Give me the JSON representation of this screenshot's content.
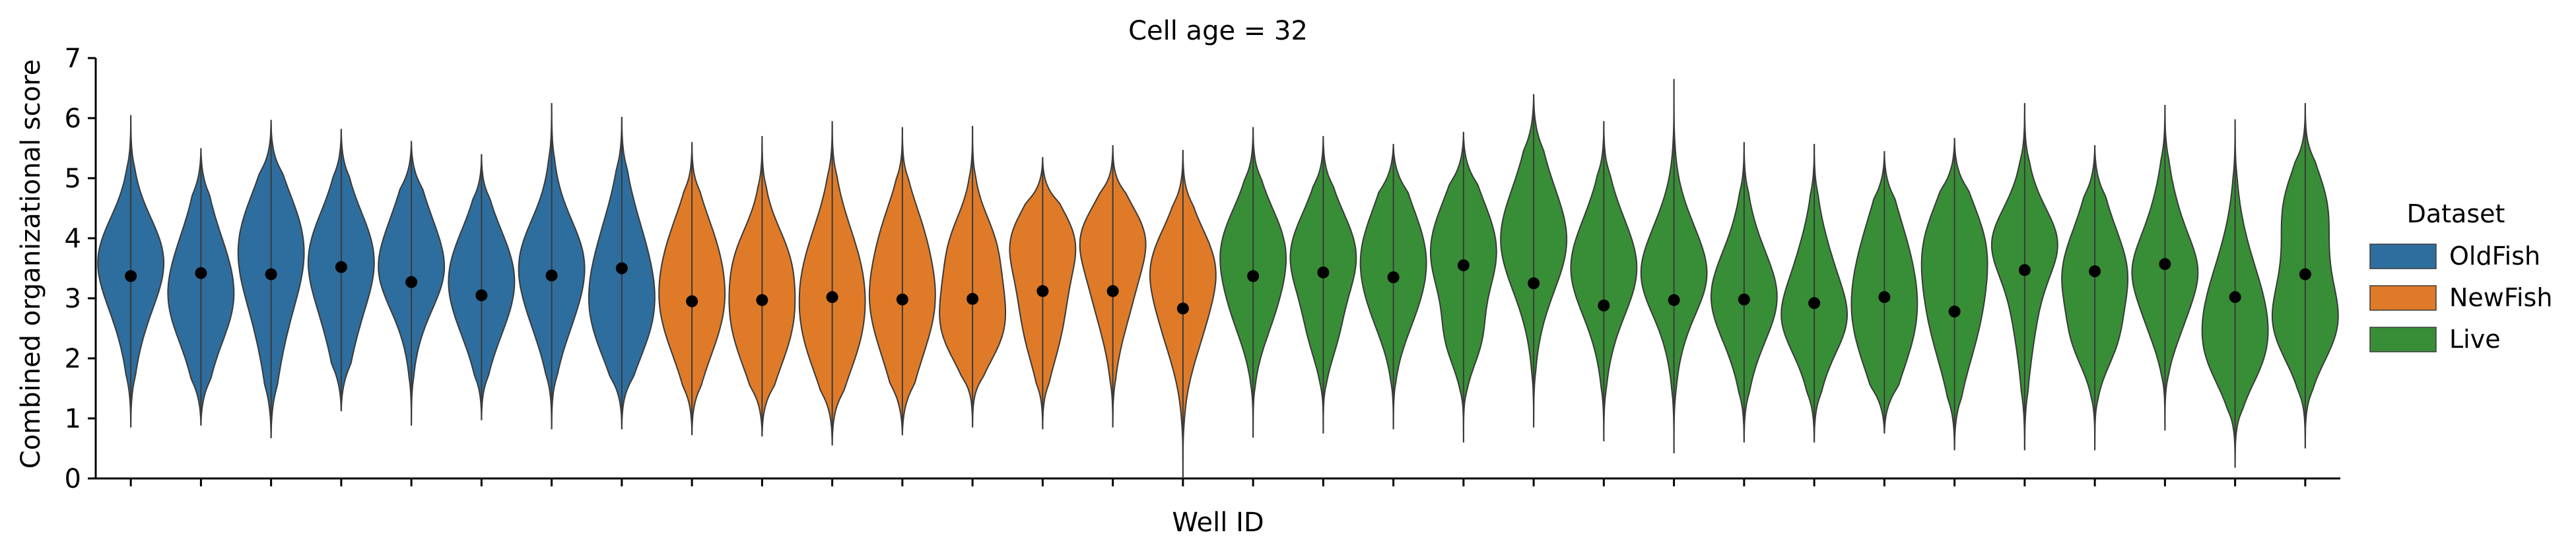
{
  "chart_data": {
    "type": "violin",
    "title": "Cell age = 32",
    "xlabel": "Well ID",
    "ylabel": "Combined organizational score",
    "ylim": [
      0,
      7
    ],
    "yticks": [
      0,
      1,
      2,
      3,
      4,
      5,
      6,
      7
    ],
    "x_tick_labels_shown": false,
    "legend": {
      "title": "Dataset",
      "placement": "right",
      "entries": [
        {
          "name": "OldFish",
          "color": "#2e6e9e"
        },
        {
          "name": "NewFish",
          "color": "#df7b28"
        },
        {
          "name": "Live",
          "color": "#388e36"
        }
      ]
    },
    "series": [
      {
        "name": "OldFish",
        "color": "#2e6e9e",
        "wells": [
          {
            "median": 3.37,
            "min": 0.85,
            "max": 6.05
          },
          {
            "median": 3.42,
            "min": 0.88,
            "max": 5.5
          },
          {
            "median": 3.4,
            "min": 0.67,
            "max": 5.97
          },
          {
            "median": 3.52,
            "min": 1.12,
            "max": 5.82
          },
          {
            "median": 3.27,
            "min": 0.88,
            "max": 5.62
          },
          {
            "median": 3.05,
            "min": 0.97,
            "max": 5.4
          },
          {
            "median": 3.38,
            "min": 0.82,
            "max": 6.25
          },
          {
            "median": 3.5,
            "min": 0.82,
            "max": 6.02
          }
        ]
      },
      {
        "name": "NewFish",
        "color": "#df7b28",
        "wells": [
          {
            "median": 2.95,
            "min": 0.72,
            "max": 5.6
          },
          {
            "median": 2.97,
            "min": 0.7,
            "max": 5.7
          },
          {
            "median": 3.02,
            "min": 0.55,
            "max": 5.95
          },
          {
            "median": 2.98,
            "min": 0.72,
            "max": 5.85
          },
          {
            "median": 2.99,
            "min": 0.85,
            "max": 5.87
          },
          {
            "median": 3.12,
            "min": 0.82,
            "max": 5.35
          },
          {
            "median": 3.12,
            "min": 0.85,
            "max": 5.55
          },
          {
            "median": 2.83,
            "min": 0.0,
            "max": 5.47
          }
        ]
      },
      {
        "name": "Live",
        "color": "#388e36",
        "wells": [
          {
            "median": 3.37,
            "min": 0.68,
            "max": 5.85
          },
          {
            "median": 3.43,
            "min": 0.75,
            "max": 5.7
          },
          {
            "median": 3.35,
            "min": 0.82,
            "max": 5.57
          },
          {
            "median": 3.55,
            "min": 0.6,
            "max": 5.77
          },
          {
            "median": 3.25,
            "min": 0.85,
            "max": 6.4
          },
          {
            "median": 2.88,
            "min": 0.62,
            "max": 5.95
          },
          {
            "median": 2.97,
            "min": 0.42,
            "max": 6.65
          },
          {
            "median": 2.98,
            "min": 0.6,
            "max": 5.6
          },
          {
            "median": 2.92,
            "min": 0.6,
            "max": 5.57
          },
          {
            "median": 3.02,
            "min": 0.75,
            "max": 5.45
          },
          {
            "median": 2.78,
            "min": 0.47,
            "max": 5.67
          },
          {
            "median": 3.47,
            "min": 0.47,
            "max": 6.25
          },
          {
            "median": 3.45,
            "min": 0.47,
            "max": 5.55
          },
          {
            "median": 3.57,
            "min": 0.8,
            "max": 6.22
          },
          {
            "median": 3.02,
            "min": 0.18,
            "max": 5.98
          },
          {
            "median": 3.4,
            "min": 0.5,
            "max": 6.25
          }
        ]
      }
    ]
  }
}
